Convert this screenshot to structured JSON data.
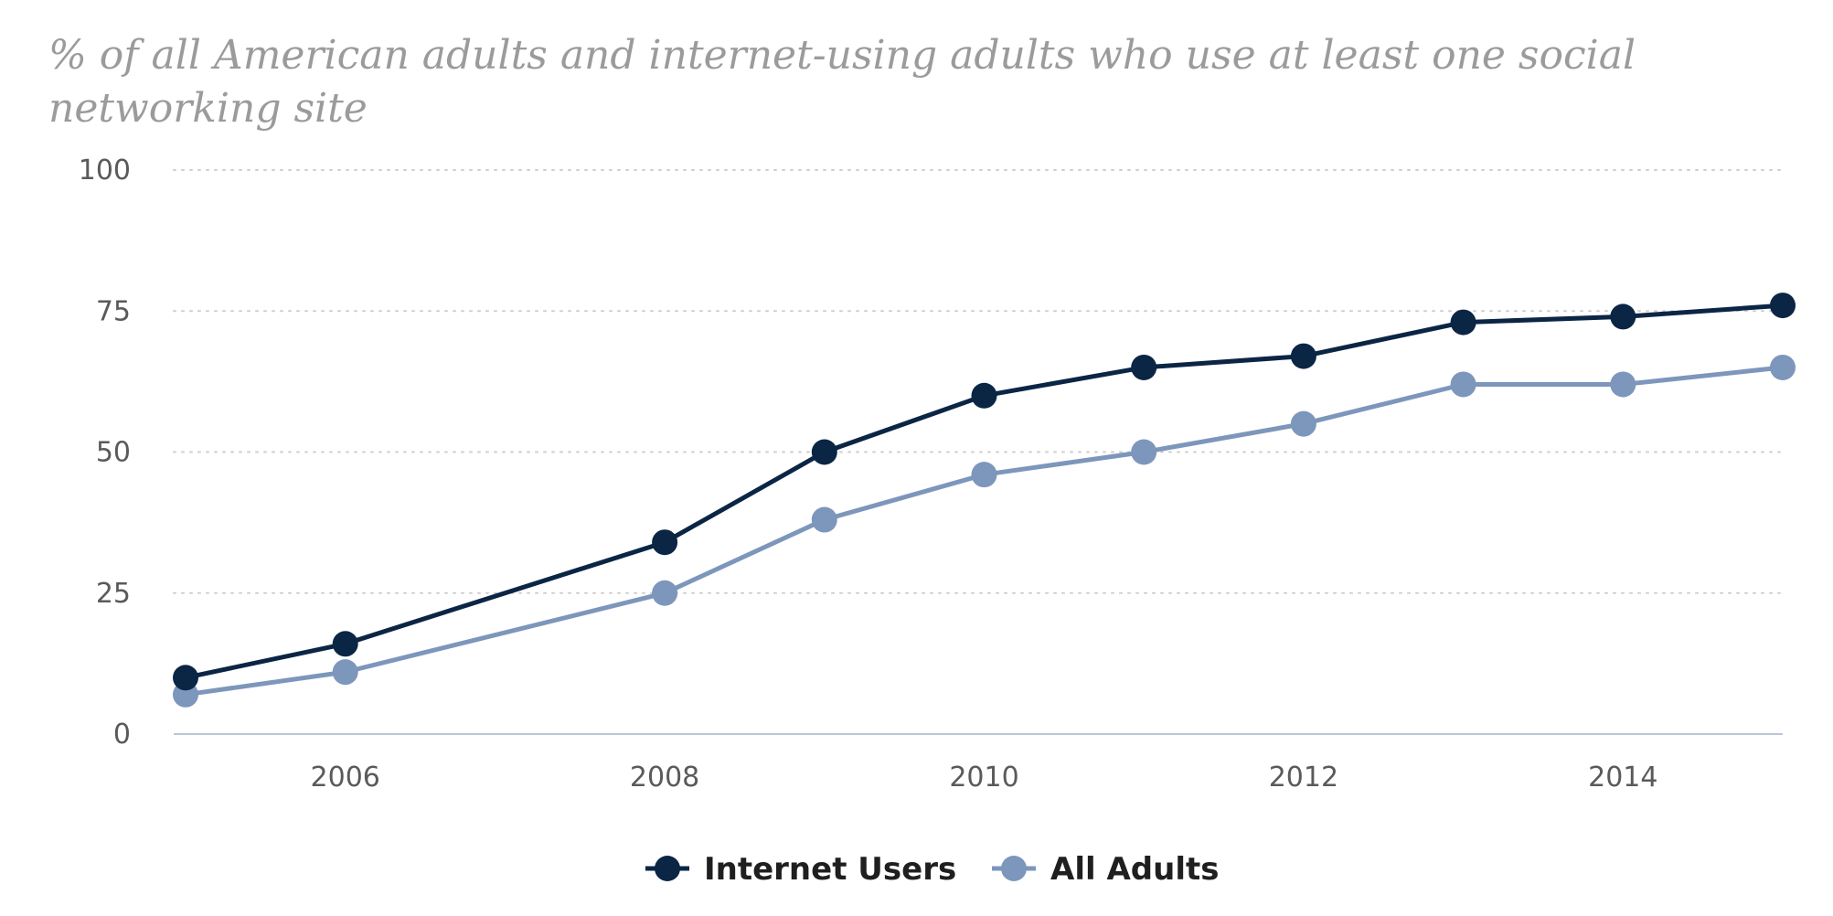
{
  "chart_data": {
    "type": "line",
    "title": "% of all American adults and internet-using adults who use at least one social networking site",
    "xlabel": "",
    "ylabel": "",
    "xlim": [
      2005,
      2015
    ],
    "ylim": [
      0,
      100
    ],
    "x_ticks": [
      2006,
      2008,
      2010,
      2012,
      2014
    ],
    "y_ticks": [
      0,
      25,
      50,
      75,
      100
    ],
    "grid": true,
    "legend": "bottom-center",
    "x": [
      2005,
      2006,
      2008,
      2009,
      2010,
      2011,
      2012,
      2013,
      2014,
      2015
    ],
    "series": [
      {
        "name": "Internet Users",
        "color": "#0b2545",
        "values": [
          10,
          16,
          34,
          50,
          60,
          65,
          67,
          73,
          74,
          76
        ]
      },
      {
        "name": "All Adults",
        "color": "#7d96bb",
        "values": [
          7,
          11,
          25,
          38,
          46,
          50,
          55,
          62,
          62,
          65
        ]
      }
    ]
  }
}
